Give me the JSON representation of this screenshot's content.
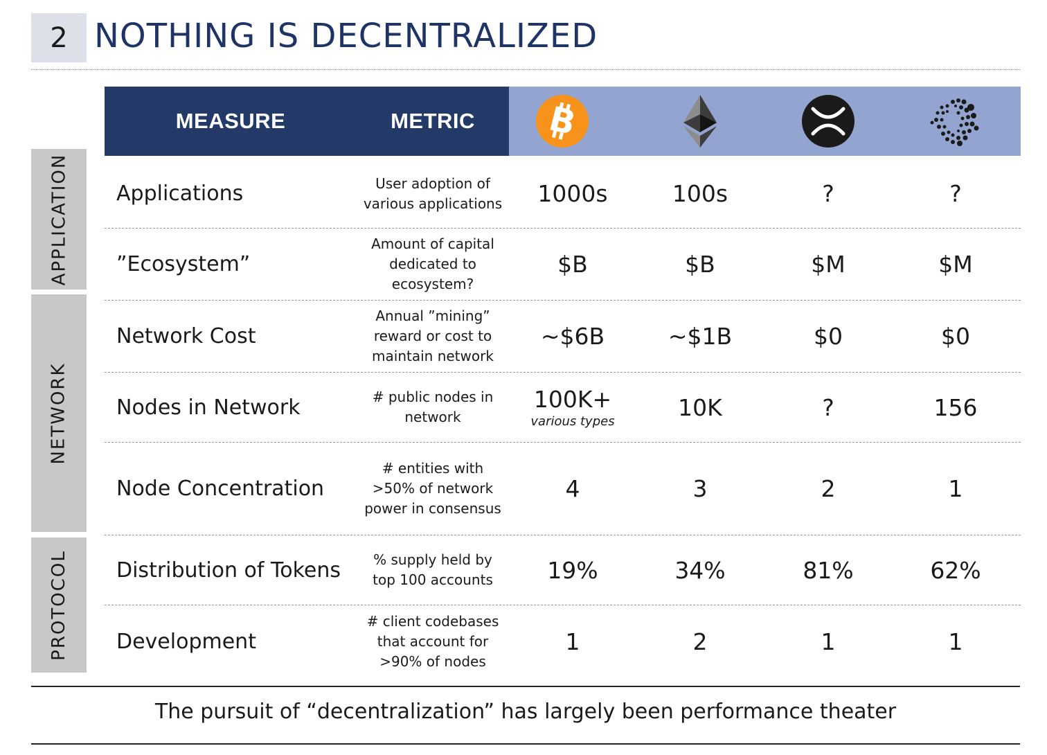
{
  "title": {
    "number": "2",
    "text": "NOTHING IS DECENTRALIZED"
  },
  "header": {
    "measure_label": "MEASURE",
    "metric_label": "METRIC",
    "coins": [
      {
        "icon": "bitcoin-icon",
        "color": "#f7931a"
      },
      {
        "icon": "ethereum-icon",
        "color": "#3c3c3d"
      },
      {
        "icon": "xrp-icon",
        "color": "#23292f"
      },
      {
        "icon": "iota-icon",
        "color": "#1a1a1a"
      }
    ],
    "colors": {
      "left_bg": "#233a68",
      "right_bg": "#93a4d0"
    }
  },
  "sections": [
    "APPLICATION",
    "NETWORK",
    "PROTOCOL"
  ],
  "rows": [
    {
      "measure": "Applications",
      "metric": "User adoption of various applications",
      "values": [
        "1000s",
        "100s",
        "?",
        "?"
      ]
    },
    {
      "measure": "”Ecosystem”",
      "metric": "Amount of capital dedicated to ecosystem?",
      "values": [
        "$B",
        "$B",
        "$M",
        "$M"
      ]
    },
    {
      "measure": "Network Cost",
      "metric": "Annual ”mining” reward or cost to maintain network",
      "values": [
        "~$6B",
        "~$1B",
        "$0",
        "$0"
      ]
    },
    {
      "measure": "Nodes in Network",
      "metric": "# public nodes in network",
      "values": [
        "100K+",
        "10K",
        "?",
        "156"
      ],
      "value_note": "various types"
    },
    {
      "measure": "Node Concentration",
      "metric": "# entities with >50% of network power in consensus",
      "values": [
        "4",
        "3",
        "2",
        "1"
      ]
    },
    {
      "measure": "Distribution of Tokens",
      "metric": "% supply held by top 100 accounts",
      "values": [
        "19%",
        "34%",
        "81%",
        "62%"
      ]
    },
    {
      "measure": "Development",
      "metric": "# client codebases that account for >90% of nodes",
      "values": [
        "1",
        "2",
        "1",
        "1"
      ]
    }
  ],
  "takeaway": "The pursuit of “decentralization” has largely been performance theater"
}
